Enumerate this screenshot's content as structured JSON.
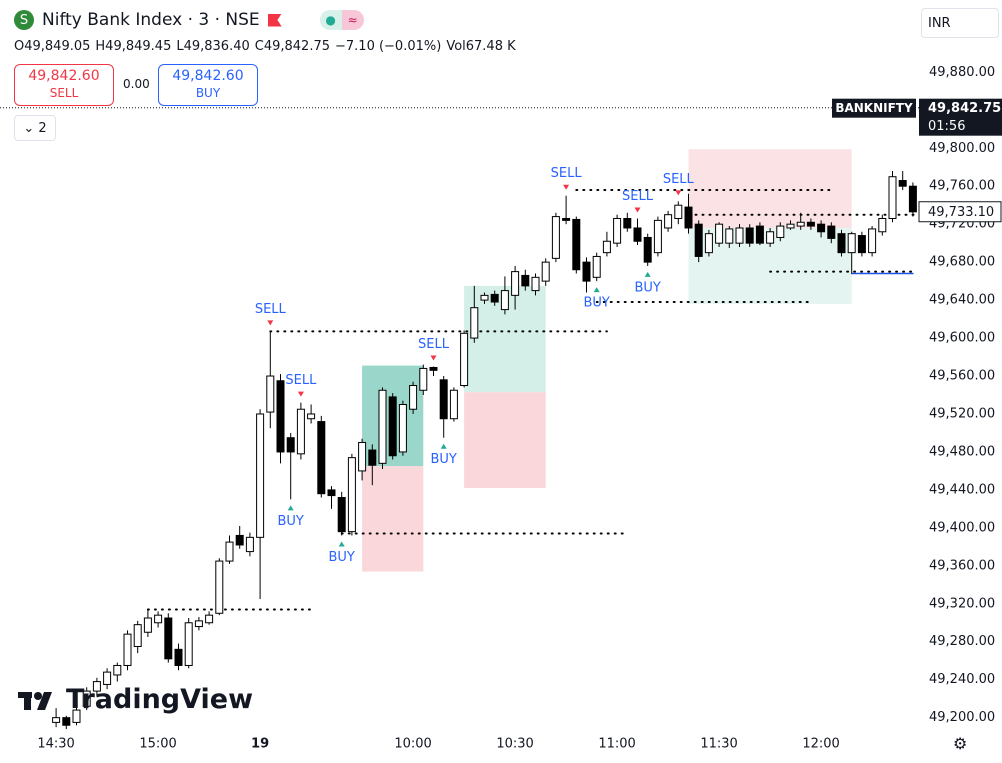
{
  "header": {
    "title": "Nifty Bank Index · 3 · NSE",
    "ohlc": [
      "O49,849.05",
      "H49,849.45",
      "L49,836.40",
      "C49,842.75",
      "−7.10 (−0.01%)",
      "Vol67.48 K"
    ],
    "currency": "INR",
    "indicator_count": "2"
  },
  "trade_panel": {
    "sell_price": "49,842.60",
    "sell_label": "SELL",
    "spread": "0.00",
    "buy_price": "49,842.60",
    "buy_label": "BUY"
  },
  "watermark": "TradingView",
  "chart_data": {
    "type": "candlestick",
    "xlim": [
      -5.5,
      84.5
    ],
    "ylim": [
      49187,
      49893
    ],
    "grid": false,
    "up_color": "#ffffff",
    "down_color": "#000000",
    "wick_color": "#000000",
    "xticks": [
      {
        "value": 0,
        "label": "14:30"
      },
      {
        "value": 10,
        "label": "15:00"
      },
      {
        "value": 20,
        "label": "19"
      },
      {
        "value": 35,
        "label": "10:00"
      },
      {
        "value": 45,
        "label": "10:30"
      },
      {
        "value": 55,
        "label": "11:00"
      },
      {
        "value": 65,
        "label": "11:30"
      },
      {
        "value": 75,
        "label": "12:00"
      }
    ],
    "yticks": [
      {
        "value": 49200,
        "label": "49,200.00"
      },
      {
        "value": 49240,
        "label": "49,240.00"
      },
      {
        "value": 49280,
        "label": "49,280.00"
      },
      {
        "value": 49320,
        "label": "49,320.00"
      },
      {
        "value": 49360,
        "label": "49,360.00"
      },
      {
        "value": 49400,
        "label": "49,400.00"
      },
      {
        "value": 49440,
        "label": "49,440.00"
      },
      {
        "value": 49480,
        "label": "49,480.00"
      },
      {
        "value": 49520,
        "label": "49,520.00"
      },
      {
        "value": 49560,
        "label": "49,560.00"
      },
      {
        "value": 49600,
        "label": "49,600.00"
      },
      {
        "value": 49640,
        "label": "49,640.00"
      },
      {
        "value": 49680,
        "label": "49,680.00"
      },
      {
        "value": 49720,
        "label": "49,720.00"
      },
      {
        "value": 49760,
        "label": "49,760.00"
      },
      {
        "value": 49800,
        "label": "49,800.00"
      },
      {
        "value": 49840,
        "label": "49,840.00"
      },
      {
        "value": 49880,
        "label": "49,880.00"
      }
    ],
    "open": [
      49195,
      49200,
      49195,
      49212,
      49228,
      49235,
      49245,
      49255,
      49275,
      49290,
      49300,
      49305,
      49272,
      49255,
      49296,
      49300,
      49310,
      49365,
      49392,
      49375,
      49390,
      49522,
      49555,
      49495,
      49478,
      49515,
      49512,
      49440,
      49432,
      49396,
      49460,
      49482,
      49468,
      49538,
      49480,
      49525,
      49545,
      49569,
      49556,
      49515,
      49550,
      49600,
      49640,
      49646,
      49630,
      49645,
      49666,
      49650,
      49660,
      49684,
      49726,
      49725,
      49680,
      49664,
      49690,
      49700,
      49726,
      49716,
      49706,
      49690,
      49716,
      49726,
      49738,
      49720,
      49690,
      49700,
      49700,
      49700,
      49716,
      49718,
      49700,
      49706,
      49716,
      49718,
      49722,
      49720,
      49718,
      49710,
      49690,
      49708,
      49690,
      49712,
      49726,
      49766,
      49760
    ],
    "high": [
      49210,
      49202,
      49212,
      49232,
      49242,
      49252,
      49258,
      49292,
      49302,
      49315,
      49312,
      49310,
      49278,
      49305,
      49306,
      49312,
      49368,
      49392,
      49402,
      49395,
      49525,
      49607,
      49562,
      49500,
      49532,
      49530,
      49518,
      49444,
      49438,
      49478,
      49494,
      49488,
      49548,
      49542,
      49534,
      49554,
      49572,
      49570,
      49560,
      49548,
      49608,
      49655,
      49648,
      49650,
      49665,
      49676,
      49672,
      49668,
      49684,
      49732,
      49750,
      49728,
      49685,
      49690,
      49712,
      49730,
      49732,
      49726,
      49710,
      49728,
      49734,
      49744,
      49752,
      49724,
      49714,
      49722,
      49718,
      49720,
      49720,
      49722,
      49716,
      49722,
      49724,
      49732,
      49726,
      49724,
      49722,
      49714,
      49712,
      49712,
      49718,
      49730,
      49776,
      49776,
      49764
    ],
    "low": [
      49190,
      49188,
      49192,
      49208,
      49222,
      49230,
      49238,
      49250,
      49268,
      49285,
      49295,
      49258,
      49250,
      49252,
      49292,
      49298,
      49308,
      49362,
      49378,
      49370,
      49325,
      49505,
      49468,
      49430,
      49472,
      49510,
      49432,
      49420,
      49392,
      49392,
      49450,
      49445,
      49462,
      49472,
      49476,
      49520,
      49540,
      49560,
      49495,
      49512,
      49548,
      49595,
      49636,
      49634,
      49625,
      49630,
      49650,
      49645,
      49655,
      49680,
      49720,
      49668,
      49648,
      49660,
      49686,
      49696,
      49712,
      49698,
      49676,
      49686,
      49712,
      49720,
      49710,
      49680,
      49686,
      49696,
      49695,
      49696,
      49696,
      49698,
      49696,
      49702,
      49714,
      49714,
      49714,
      49706,
      49700,
      49686,
      49668,
      49686,
      49686,
      49708,
      49722,
      49756,
      49728
    ],
    "close": [
      49200,
      49192,
      49208,
      49228,
      49238,
      49248,
      49255,
      49288,
      49298,
      49305,
      49308,
      49262,
      49255,
      49300,
      49302,
      49308,
      49365,
      49385,
      49382,
      49390,
      49520,
      49560,
      49480,
      49480,
      49525,
      49520,
      49436,
      49434,
      49396,
      49474,
      49490,
      49466,
      49545,
      49476,
      49530,
      49550,
      49568,
      49566,
      49515,
      49545,
      49605,
      49632,
      49645,
      49638,
      49650,
      49670,
      49655,
      49664,
      49680,
      49728,
      49724,
      49672,
      49660,
      49686,
      49702,
      49726,
      49716,
      49702,
      49680,
      49724,
      49730,
      49740,
      49716,
      49686,
      49710,
      49720,
      49715,
      49716,
      49700,
      49700,
      49712,
      49718,
      49720,
      49722,
      49718,
      49712,
      49705,
      49690,
      49710,
      49690,
      49715,
      49726,
      49770,
      49760,
      49733
    ],
    "zones": [
      {
        "from": 30,
        "to": 36,
        "top": 49571,
        "mid": 49465,
        "bottom": 49354,
        "upper_color": "#8fd3c4",
        "lower_color": "#f9d3d6"
      },
      {
        "from": 40,
        "to": 48,
        "top": 49655,
        "mid": 49543,
        "bottom": 49442,
        "upper_color": "#cfece6",
        "lower_color": "#f9d3d6"
      },
      {
        "from": 62,
        "to": 78,
        "top": 49799,
        "mid": 49716,
        "bottom": 49636,
        "upper_color": "#fbe0e2",
        "lower_color": "#e0f3ef"
      }
    ],
    "levels": [
      {
        "price": 49314,
        "from": 9,
        "to": 25,
        "color": "#000000",
        "dotted": true
      },
      {
        "price": 49607,
        "from": 21,
        "to": 54,
        "color": "#000000",
        "dotted": true
      },
      {
        "price": 49394,
        "from": 28,
        "to": 56,
        "color": "#000000",
        "dotted": true
      },
      {
        "price": 49756,
        "from": 51,
        "to": 76,
        "color": "#000000",
        "dotted": true
      },
      {
        "price": 49638,
        "from": 53,
        "to": 74,
        "color": "#000000",
        "dotted": true
      },
      {
        "price": 49730,
        "from": 62,
        "to": 85,
        "color": "#000000",
        "dotted": true
      },
      {
        "price": 49670,
        "from": 70,
        "to": 84,
        "color": "#000000",
        "dotted": true
      },
      {
        "price": 49668,
        "from": 78,
        "to": 84,
        "color": "#1e53e5",
        "dotted": false
      }
    ],
    "signals": [
      {
        "index": 21,
        "label": "SELL",
        "color": "#f23645",
        "position": "above"
      },
      {
        "index": 24,
        "label": "SELL",
        "color": "#f23645",
        "position": "above"
      },
      {
        "index": 23,
        "label": "BUY",
        "color": "#22ab94",
        "position": "below"
      },
      {
        "index": 28,
        "label": "BUY",
        "color": "#22ab94",
        "position": "below"
      },
      {
        "index": 37,
        "label": "SELL",
        "color": "#f23645",
        "position": "above"
      },
      {
        "index": 38,
        "label": "BUY",
        "color": "#22ab94",
        "position": "below"
      },
      {
        "index": 50,
        "label": "SELL",
        "color": "#f23645",
        "position": "above"
      },
      {
        "index": 53,
        "label": "BUY",
        "color": "#22ab94",
        "position": "below"
      },
      {
        "index": 57,
        "label": "SELL",
        "color": "#f23645",
        "position": "above"
      },
      {
        "index": 58,
        "label": "BUY",
        "color": "#22ab94",
        "position": "below"
      },
      {
        "index": 61,
        "label": "SELL",
        "color": "#f23645",
        "position": "above"
      }
    ],
    "price_line": {
      "value": 49842.75,
      "label": "49,842.75",
      "symbol": "BANKNIFTY",
      "countdown": "01:56"
    },
    "marker": {
      "value": 49733.1,
      "label": "49,733.10"
    }
  }
}
